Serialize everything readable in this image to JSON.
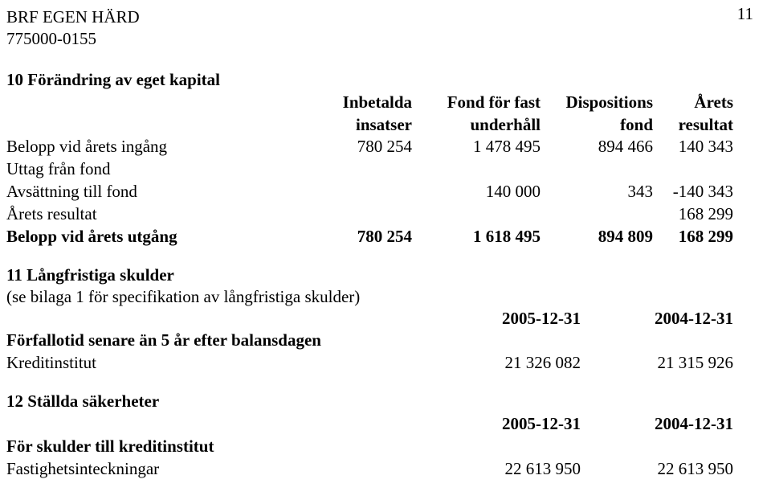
{
  "page_number": "11",
  "org": {
    "name": "BRF EGEN HÄRD",
    "id": "775000-0155"
  },
  "section10": {
    "title": "10 Förändring av eget kapital",
    "headers": {
      "c1_l1": "Inbetalda",
      "c1_l2": "insatser",
      "c2_l1": "Fond för fast",
      "c2_l2": "underhåll",
      "c3_l1": "Dispositions",
      "c3_l2": "fond",
      "c4_l1": "Årets",
      "c4_l2": "resultat"
    },
    "rows": {
      "r1": {
        "label": "Belopp vid årets ingång",
        "a": "780 254",
        "b": "1 478 495",
        "c": "894 466",
        "d": "140 343"
      },
      "r2": {
        "label": "Uttag från fond",
        "a": "",
        "b": "",
        "c": "",
        "d": ""
      },
      "r3": {
        "label": "Avsättning till fond",
        "a": "",
        "b": "140 000",
        "c": "343",
        "d": "-140 343"
      },
      "r4": {
        "label": "Årets resultat",
        "a": "",
        "b": "",
        "c": "",
        "d": "168 299"
      },
      "r5": {
        "label": "Belopp vid årets utgång",
        "a": "780 254",
        "b": "1 618 495",
        "c": "894 809",
        "d": "168 299"
      }
    }
  },
  "section11": {
    "title": "11 Långfristiga skulder",
    "note": "(se bilaga 1 för specifikation av långfristiga skulder)",
    "date1": "2005-12-31",
    "date2": "2004-12-31",
    "sub": "Förfallotid senare än 5 år efter balansdagen",
    "row": {
      "label": "Kreditinstitut",
      "a": "21 326 082",
      "b": "21 315 926"
    }
  },
  "section12": {
    "title": "12 Ställda säkerheter",
    "date1": "2005-12-31",
    "date2": "2004-12-31",
    "sub": "För skulder till kreditinstitut",
    "row": {
      "label": "Fastighetsinteckningar",
      "a": "22 613 950",
      "b": "22 613 950"
    }
  }
}
